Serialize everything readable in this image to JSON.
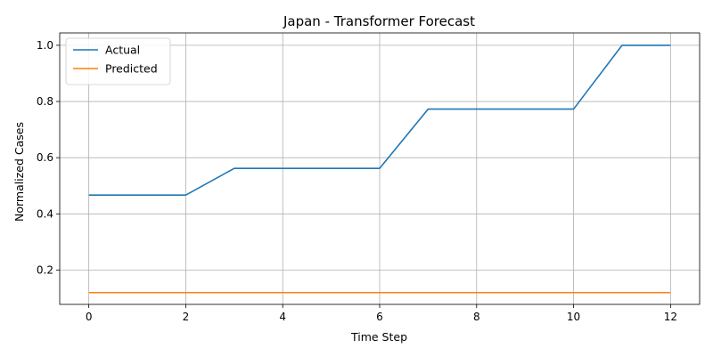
{
  "chart_data": {
    "type": "line",
    "title": "Japan - Transformer Forecast",
    "xlabel": "Time Step",
    "ylabel": "Normalized Cases",
    "x": [
      0,
      1,
      2,
      3,
      4,
      5,
      6,
      7,
      8,
      9,
      10,
      11,
      12
    ],
    "xlim": [
      -0.6,
      12.6
    ],
    "ylim": [
      0.078,
      1.044
    ],
    "xticks": [
      0,
      2,
      4,
      6,
      8,
      10,
      12
    ],
    "yticks": [
      0.2,
      0.4,
      0.6,
      0.8,
      1.0
    ],
    "xtick_labels": [
      "0",
      "2",
      "4",
      "6",
      "8",
      "10",
      "12"
    ],
    "ytick_labels": [
      "0.2",
      "0.4",
      "0.6",
      "0.8",
      "1.0"
    ],
    "grid": true,
    "legend_position": "top-left",
    "series": [
      {
        "name": "Actual",
        "color": "#1f77b4",
        "values": [
          0.467,
          0.467,
          0.467,
          0.562,
          0.562,
          0.562,
          0.562,
          0.773,
          0.773,
          0.773,
          0.773,
          1.0,
          1.0
        ]
      },
      {
        "name": "Predicted",
        "color": "#ff7f0e",
        "values": [
          0.12,
          0.12,
          0.12,
          0.12,
          0.12,
          0.12,
          0.12,
          0.12,
          0.12,
          0.12,
          0.12,
          0.12,
          0.12
        ]
      }
    ]
  }
}
